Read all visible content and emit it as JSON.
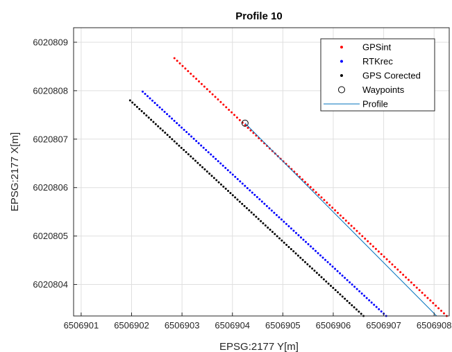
{
  "chart_data": {
    "type": "scatter",
    "title": "Profile 10",
    "xlabel": "EPSG:2177 Y[m]",
    "ylabel": "EPSG:2177 X[m]",
    "xlim": [
      6506900.85,
      6506908.3
    ],
    "ylim": [
      6020803.35,
      6020809.3
    ],
    "xticks": [
      6506901,
      6506902,
      6506903,
      6506904,
      6506905,
      6506906,
      6506907,
      6506908
    ],
    "yticks": [
      6020804,
      6020805,
      6020806,
      6020807,
      6020808,
      6020809
    ],
    "grid": true,
    "legend_position": "top-right",
    "series": [
      {
        "name": "GPSint",
        "marker": "dot",
        "color": "#ff0000",
        "x": [
          6506902.85,
          6506908.25
        ],
        "y": [
          6020808.67,
          6020803.35
        ]
      },
      {
        "name": "RTKrec",
        "marker": "dot",
        "color": "#0000ff",
        "x": [
          6506902.22,
          6506907.05
        ],
        "y": [
          6020807.98,
          6020803.35
        ]
      },
      {
        "name": "GPS Corected",
        "marker": "dot",
        "color": "#000000",
        "x": [
          6506901.97,
          6506906.6
        ],
        "y": [
          6020807.8,
          6020803.35
        ]
      },
      {
        "name": "Waypoints",
        "marker": "circle",
        "color": "#000000",
        "x": [
          6506904.25
        ],
        "y": [
          6020807.33
        ]
      },
      {
        "name": "Profile",
        "marker": "line",
        "color": "#0072bd",
        "x": [
          6506904.25,
          6506908.05
        ],
        "y": [
          6020807.33,
          6020803.35
        ]
      }
    ]
  }
}
